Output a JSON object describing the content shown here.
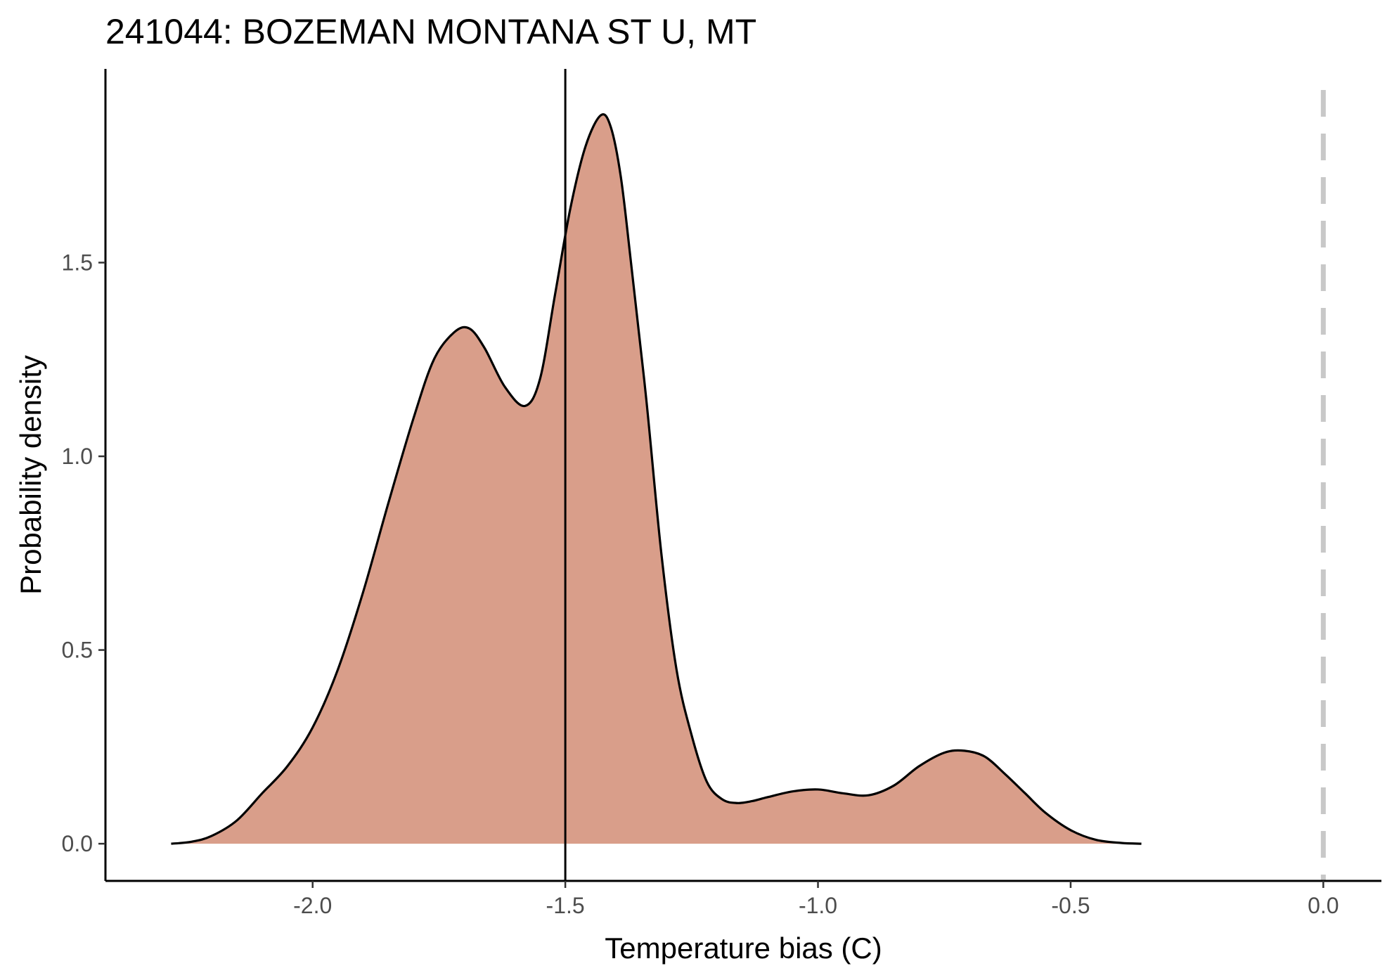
{
  "chart_data": {
    "type": "area",
    "title": "241044: BOZEMAN MONTANA ST U, MT",
    "xlabel": "Temperature bias (C)",
    "ylabel": "Probability density",
    "xlim": [
      -2.41,
      0.115
    ],
    "ylim": [
      -0.096,
      2.0
    ],
    "x_ticks": [
      -2.0,
      -1.5,
      -1.0,
      -0.5,
      0.0
    ],
    "x_tick_labels": [
      "-2.0",
      "-1.5",
      "-1.0",
      "-0.5",
      "0.0"
    ],
    "y_ticks": [
      0.0,
      0.5,
      1.0,
      1.5
    ],
    "y_tick_labels": [
      "0.0",
      "0.5",
      "1.0",
      "1.5"
    ],
    "grid": false,
    "legend": "none",
    "fill_color": "#d99e8a",
    "line_color": "#000000",
    "reference_lines": [
      {
        "x": -1.5,
        "style": "solid",
        "color": "#000000"
      },
      {
        "x": 0.0,
        "style": "dashed",
        "color": "#c8c8c8"
      }
    ],
    "series": [
      {
        "x": [
          -2.28,
          -2.24,
          -2.2,
          -2.15,
          -2.1,
          -2.05,
          -2.0,
          -1.95,
          -1.9,
          -1.85,
          -1.8,
          -1.76,
          -1.72,
          -1.69,
          -1.66,
          -1.62,
          -1.58,
          -1.55,
          -1.52,
          -1.49,
          -1.46,
          -1.43,
          -1.41,
          -1.39,
          -1.37,
          -1.34,
          -1.31,
          -1.28,
          -1.25,
          -1.22,
          -1.19,
          -1.16,
          -1.13,
          -1.1,
          -1.05,
          -1.0,
          -0.95,
          -0.9,
          -0.85,
          -0.8,
          -0.75,
          -0.71,
          -0.67,
          -0.63,
          -0.59,
          -0.55,
          -0.5,
          -0.45,
          -0.4,
          -0.36
        ],
        "y": [
          0.0,
          0.005,
          0.02,
          0.06,
          0.13,
          0.2,
          0.3,
          0.45,
          0.65,
          0.88,
          1.1,
          1.25,
          1.32,
          1.33,
          1.28,
          1.18,
          1.13,
          1.2,
          1.42,
          1.64,
          1.8,
          1.88,
          1.85,
          1.72,
          1.5,
          1.15,
          0.75,
          0.45,
          0.28,
          0.16,
          0.115,
          0.105,
          0.11,
          0.12,
          0.135,
          0.14,
          0.13,
          0.125,
          0.15,
          0.2,
          0.235,
          0.24,
          0.225,
          0.18,
          0.13,
          0.08,
          0.035,
          0.01,
          0.002,
          0.0
        ]
      }
    ]
  }
}
